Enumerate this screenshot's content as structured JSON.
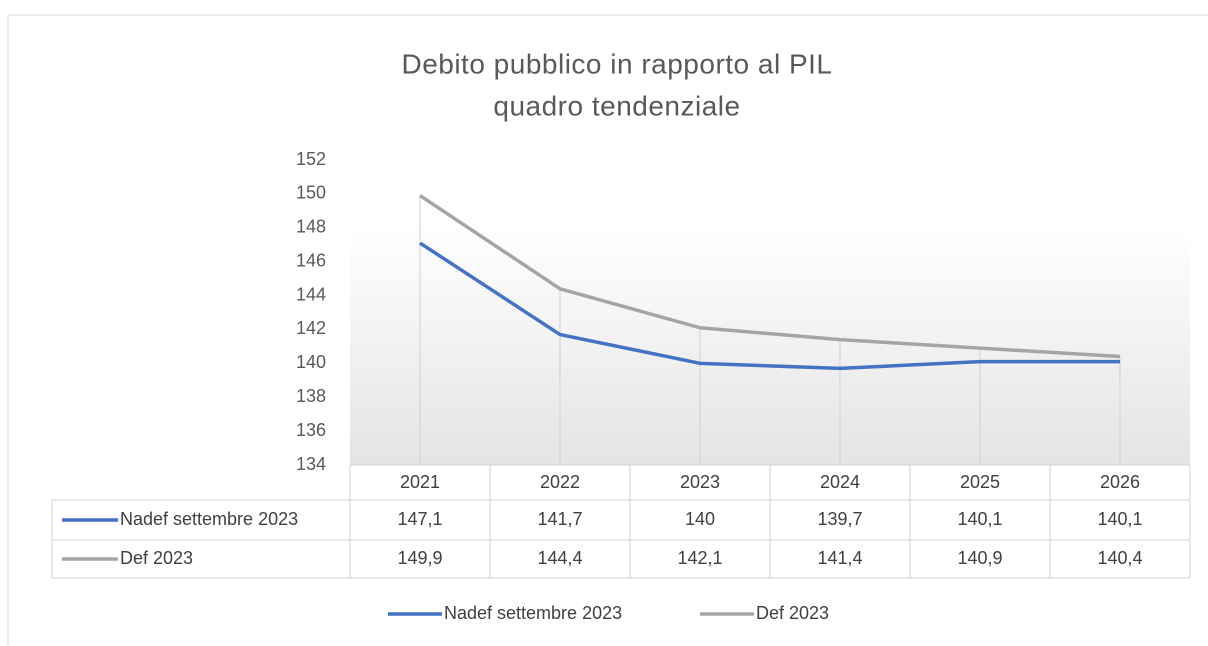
{
  "chart_data": {
    "type": "line",
    "title": "Debito pubblico in rapporto al PIL",
    "subtitle": "quadro tendenziale",
    "categories": [
      "2021",
      "2022",
      "2023",
      "2024",
      "2025",
      "2026"
    ],
    "series": [
      {
        "name": "Nadef settembre 2023",
        "color": "#4472c4",
        "values": [
          147.1,
          141.7,
          140,
          139.7,
          140.1,
          140.1
        ],
        "value_labels": [
          "147,1",
          "141,7",
          "140",
          "139,7",
          "140,1",
          "140,1"
        ]
      },
      {
        "name": "Def 2023",
        "color": "#a5a5a5",
        "values": [
          149.9,
          144.4,
          142.1,
          141.4,
          140.9,
          140.4
        ],
        "value_labels": [
          "149,9",
          "144,4",
          "142,1",
          "141,4",
          "140,9",
          "140,4"
        ]
      }
    ],
    "ylim": [
      134,
      152
    ],
    "yticks": [
      134,
      136,
      138,
      140,
      142,
      144,
      146,
      148,
      150,
      152
    ],
    "grid": false,
    "legend": "bottom"
  }
}
